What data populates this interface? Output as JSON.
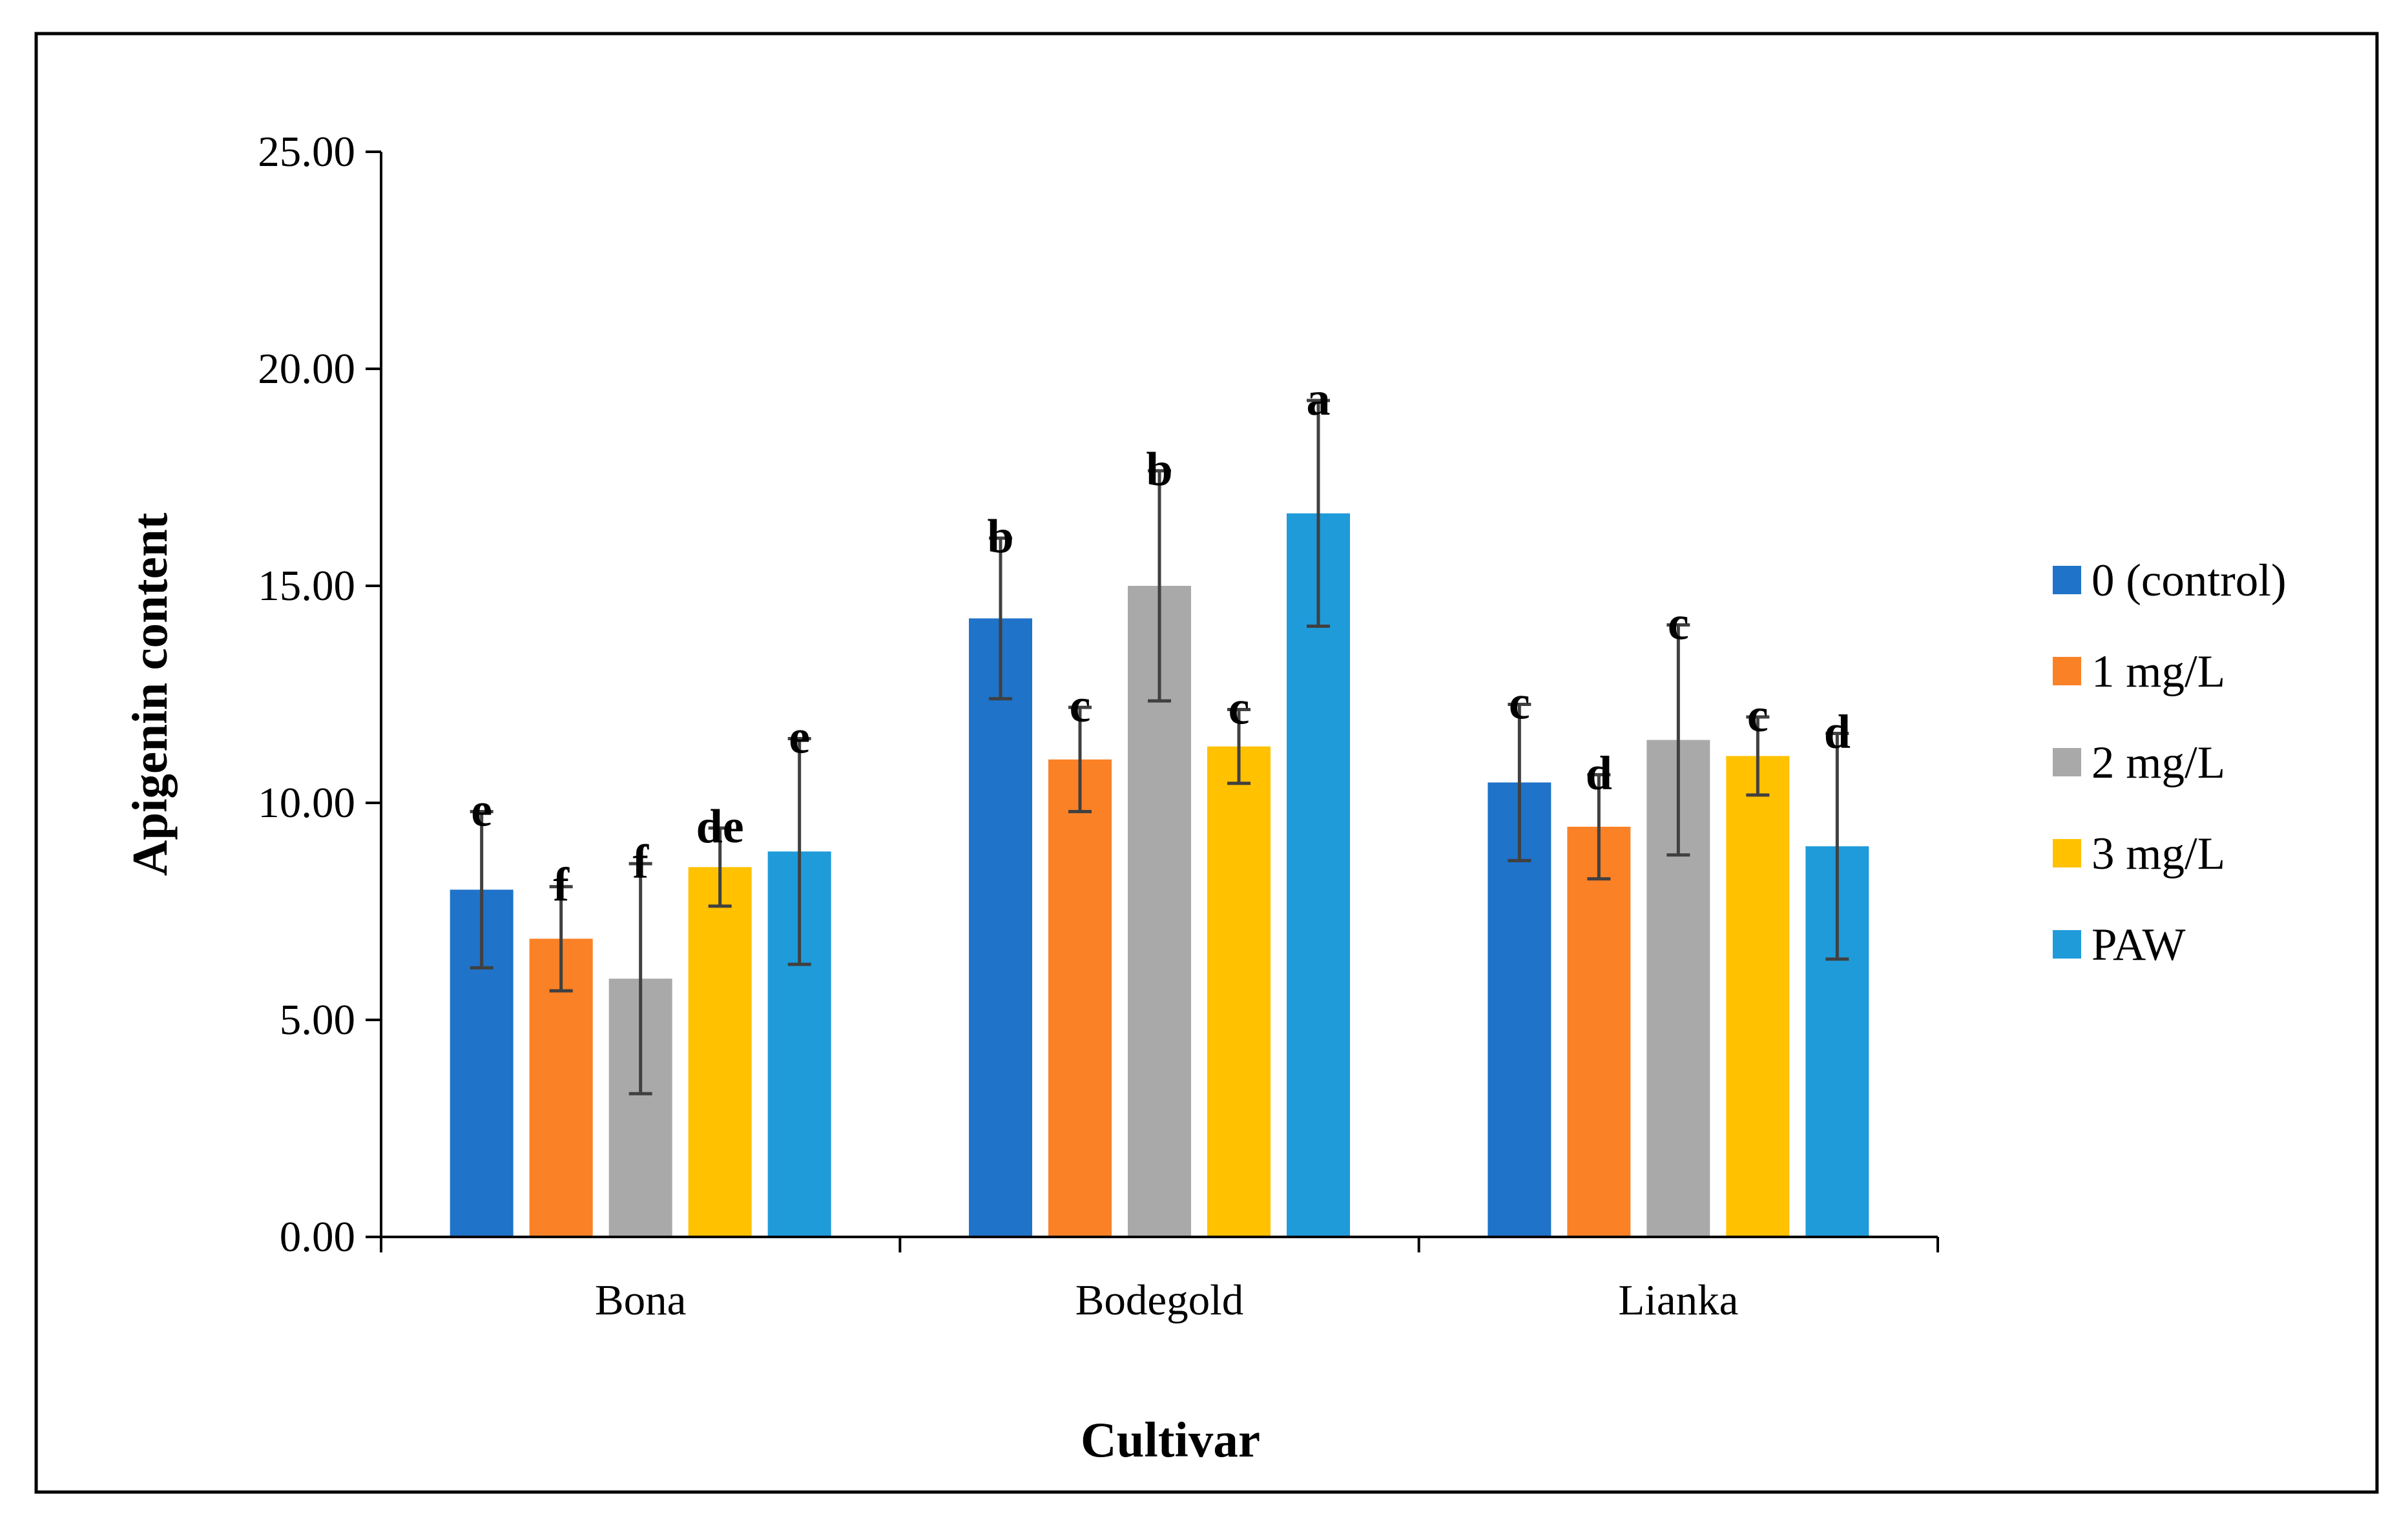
{
  "chart_data": {
    "type": "bar",
    "xlabel": "Cultivar",
    "ylabel": "Apigenin content",
    "ylim": [
      0,
      25
    ],
    "yticks": [
      "0.00",
      "5.00",
      "10.00",
      "15.00",
      "20.00",
      "25.00"
    ],
    "categories": [
      "Bona",
      "Bodegold",
      "Lianka"
    ],
    "grid": false,
    "legend_position": "right",
    "series": [
      {
        "name": "0 (control)",
        "color": "#1F73C8",
        "values": [
          8.0,
          14.25,
          10.47
        ],
        "errors": [
          1.8,
          1.85,
          1.8
        ],
        "labels": [
          "e",
          "b",
          "c"
        ]
      },
      {
        "name": "1 mg/L",
        "color": "#FB8126",
        "values": [
          6.87,
          11.0,
          9.45
        ],
        "errors": [
          1.2,
          1.2,
          1.2
        ],
        "labels": [
          "f",
          "c",
          "d"
        ]
      },
      {
        "name": "2 mg/L",
        "color": "#A9A9A9",
        "values": [
          5.95,
          15.0,
          11.45
        ],
        "errors": [
          2.65,
          2.65,
          2.65
        ],
        "labels": [
          "f",
          "b",
          "c"
        ]
      },
      {
        "name": "3 mg/L",
        "color": "#FFC100",
        "values": [
          8.52,
          11.3,
          11.08
        ],
        "errors": [
          0.9,
          0.85,
          0.9
        ],
        "labels": [
          "de",
          "c",
          "c"
        ]
      },
      {
        "name": "PAW",
        "color": "#1F9BDA",
        "values": [
          8.88,
          16.67,
          9.0
        ],
        "errors": [
          2.6,
          2.6,
          2.6
        ],
        "labels": [
          "e",
          "a",
          "d"
        ]
      }
    ]
  }
}
